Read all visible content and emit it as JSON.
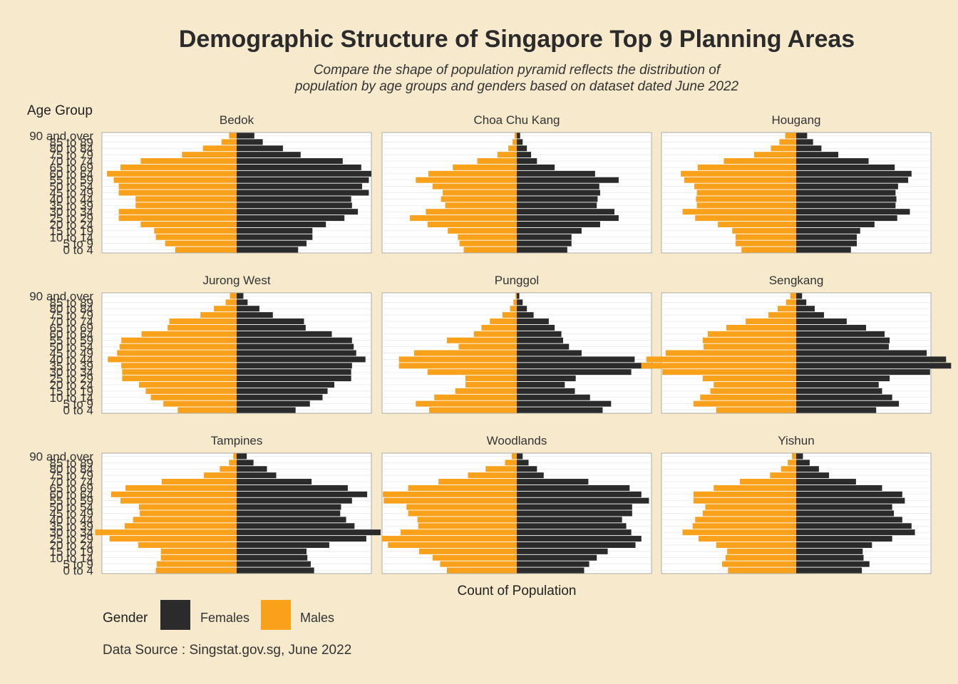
{
  "title": "Demographic Structure of Singapore Top 9 Planning Areas",
  "subtitle_line1": "Compare the shape of population pyramid reflects the distribution of",
  "subtitle_line2": "population by age groups and genders based on dataset dated June 2022",
  "y_axis_title": "Age Group",
  "x_axis_title": "Count of Population",
  "legend": {
    "title": "Gender",
    "items": [
      {
        "label": "Females",
        "color": "#2b2b2b"
      },
      {
        "label": "Males",
        "color": "#f9a11b"
      }
    ]
  },
  "caption": "Data Source : Singstat.gov.sg, June 2022",
  "colors": {
    "background": "#f6e9cc",
    "panel": "#ffffff",
    "female": "#2b2b2b",
    "male": "#f9a11b"
  },
  "chart_data": {
    "type": "bar",
    "orientation": "horizontal-pyramid",
    "age_groups": [
      "0 to 4",
      "5 to 9",
      "10 to 14",
      "15 to 19",
      "20 to 24",
      "25 to 29",
      "30 to 34",
      "35 to 39",
      "40 to 44",
      "45 to 49",
      "50 to 54",
      "55 to 59",
      "60 to 64",
      "65 to 69",
      "70 to 74",
      "75 to 79",
      "80 to 84",
      "85 to 89",
      "90 and over"
    ],
    "x_range": [
      -16000,
      16000
    ],
    "panels": [
      {
        "name": "Bedok",
        "females": [
          7300,
          8300,
          9000,
          9000,
          10600,
          12800,
          14400,
          13700,
          13600,
          15700,
          14900,
          15700,
          16000,
          14800,
          12600,
          7600,
          5500,
          3100,
          2100
        ],
        "males": [
          7300,
          8500,
          9600,
          9800,
          11400,
          14000,
          14000,
          12000,
          12000,
          14000,
          14000,
          14600,
          15400,
          13800,
          11400,
          6500,
          4000,
          1800,
          900
        ]
      },
      {
        "name": "Choa Chu Kang",
        "females": [
          6000,
          6500,
          6500,
          7700,
          9900,
          12100,
          11600,
          9500,
          9600,
          9900,
          9800,
          12100,
          9300,
          4500,
          2400,
          1700,
          1200,
          700,
          400
        ],
        "males": [
          6300,
          6800,
          7000,
          8200,
          10600,
          12700,
          10800,
          8500,
          9000,
          8800,
          10000,
          12000,
          10500,
          7600,
          4700,
          2300,
          1000,
          500,
          250
        ]
      },
      {
        "name": "Hougang",
        "females": [
          6500,
          7200,
          7200,
          7600,
          9300,
          12000,
          13500,
          11800,
          11900,
          11800,
          12100,
          13300,
          13700,
          11700,
          8600,
          5000,
          3000,
          2000,
          1300
        ]
      },
      {
        "name": "Jurong West",
        "females": [
          7000,
          8700,
          10200,
          10800,
          11600,
          13600,
          13600,
          13700,
          15300,
          14200,
          13900,
          13700,
          11300,
          8200,
          8000,
          4300,
          2700,
          1300,
          800
        ]
      },
      {
        "name": "Punggol",
        "females": [
          10200,
          11200,
          8700,
          6900,
          5700,
          7000,
          13600,
          16200,
          14000,
          7700,
          6200,
          5500,
          5300,
          4500,
          3800,
          2000,
          1200,
          700,
          300
        ],
        "males": [
          10400,
          12000,
          9800,
          7300,
          6100,
          6100,
          10600,
          14000,
          14000,
          12200,
          6900,
          8300,
          5100,
          4200,
          3200,
          1700,
          800,
          400,
          150
        ]
      },
      {
        "name": "Sengkang",
        "females": [
          9500,
          12200,
          11400,
          10200,
          9800,
          11100,
          15900,
          18400,
          17800,
          15500,
          11000,
          11100,
          10500,
          8300,
          6000,
          3300,
          2200,
          1200,
          700
        ]
      },
      {
        "name": "Tampines",
        "females": [
          9200,
          8800,
          8400,
          8300,
          11000,
          15400,
          17100,
          14000,
          13000,
          12300,
          12400,
          13700,
          15500,
          13200,
          8900,
          4700,
          3600,
          2000,
          1200
        ],
        "males": [
          9600,
          9500,
          9000,
          9000,
          11700,
          15100,
          16800,
          13300,
          12300,
          11500,
          11600,
          13800,
          14900,
          13200,
          8900,
          3900,
          2000,
          900,
          400
        ]
      },
      {
        "name": "Woodlands",
        "females": [
          8000,
          8600,
          9500,
          10800,
          14100,
          14800,
          13600,
          13000,
          12500,
          13700,
          13700,
          15700,
          14800,
          13400,
          8500,
          3200,
          2400,
          1400,
          700
        ],
        "males": [
          8300,
          9100,
          10000,
          11600,
          15300,
          16000,
          13800,
          11700,
          11800,
          12900,
          13100,
          15800,
          15900,
          12900,
          9300,
          5800,
          3700,
          1400,
          600
        ]
      },
      {
        "name": "Yishun",
        "females": [
          7800,
          8700,
          8000,
          7900,
          9000,
          11400,
          14100,
          13700,
          12600,
          11600,
          11400,
          12900,
          12600,
          10200,
          7100,
          3900,
          2700,
          1600,
          800
        ],
        "males": [
          8100,
          8800,
          8400,
          8200,
          9500,
          11600,
          13500,
          12300,
          12000,
          11100,
          10800,
          12200,
          12200,
          9800,
          6700,
          3100,
          1800,
          1000,
          500
        ]
      }
    ]
  }
}
